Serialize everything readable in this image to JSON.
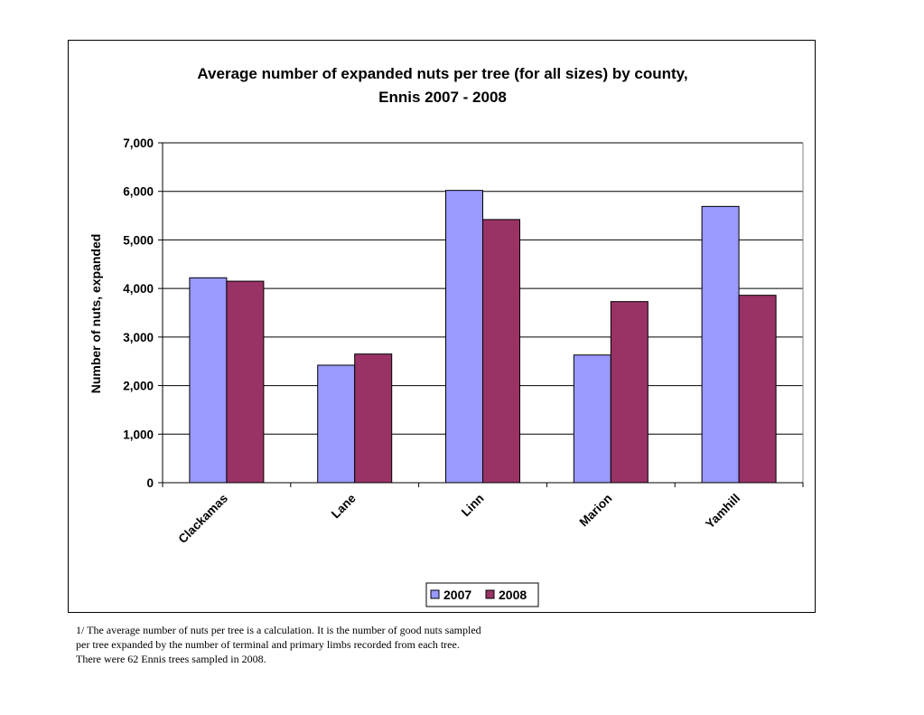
{
  "chart_data": {
    "type": "bar",
    "title_lines": [
      "Average number of expanded nuts per tree (for all sizes) by county,",
      "Ennis 2007 - 2008"
    ],
    "xlabel": "",
    "ylabel": "Number of nuts, expanded",
    "categories": [
      "Clackamas",
      "Lane",
      "Linn",
      "Marion",
      "Yamhill"
    ],
    "series": [
      {
        "name": "2007",
        "color": "#9999ff",
        "values": [
          4220,
          2420,
          6020,
          2630,
          5690
        ]
      },
      {
        "name": "2008",
        "color": "#993366",
        "values": [
          4150,
          2650,
          5420,
          3730,
          3860
        ]
      }
    ],
    "ylim": [
      0,
      7000
    ],
    "yticks": [
      "0",
      "1,000",
      "2,000",
      "3,000",
      "4,000",
      "5,000",
      "6,000",
      "7,000"
    ],
    "grid": true,
    "legend_position": "bottom-center"
  },
  "footnote": [
    "1/ The average number of nuts per tree is a calculation. It is the number of good nuts sampled",
    "per tree expanded by the number of terminal and primary limbs recorded from each tree.",
    "There were 62 Ennis trees sampled in 2008."
  ]
}
